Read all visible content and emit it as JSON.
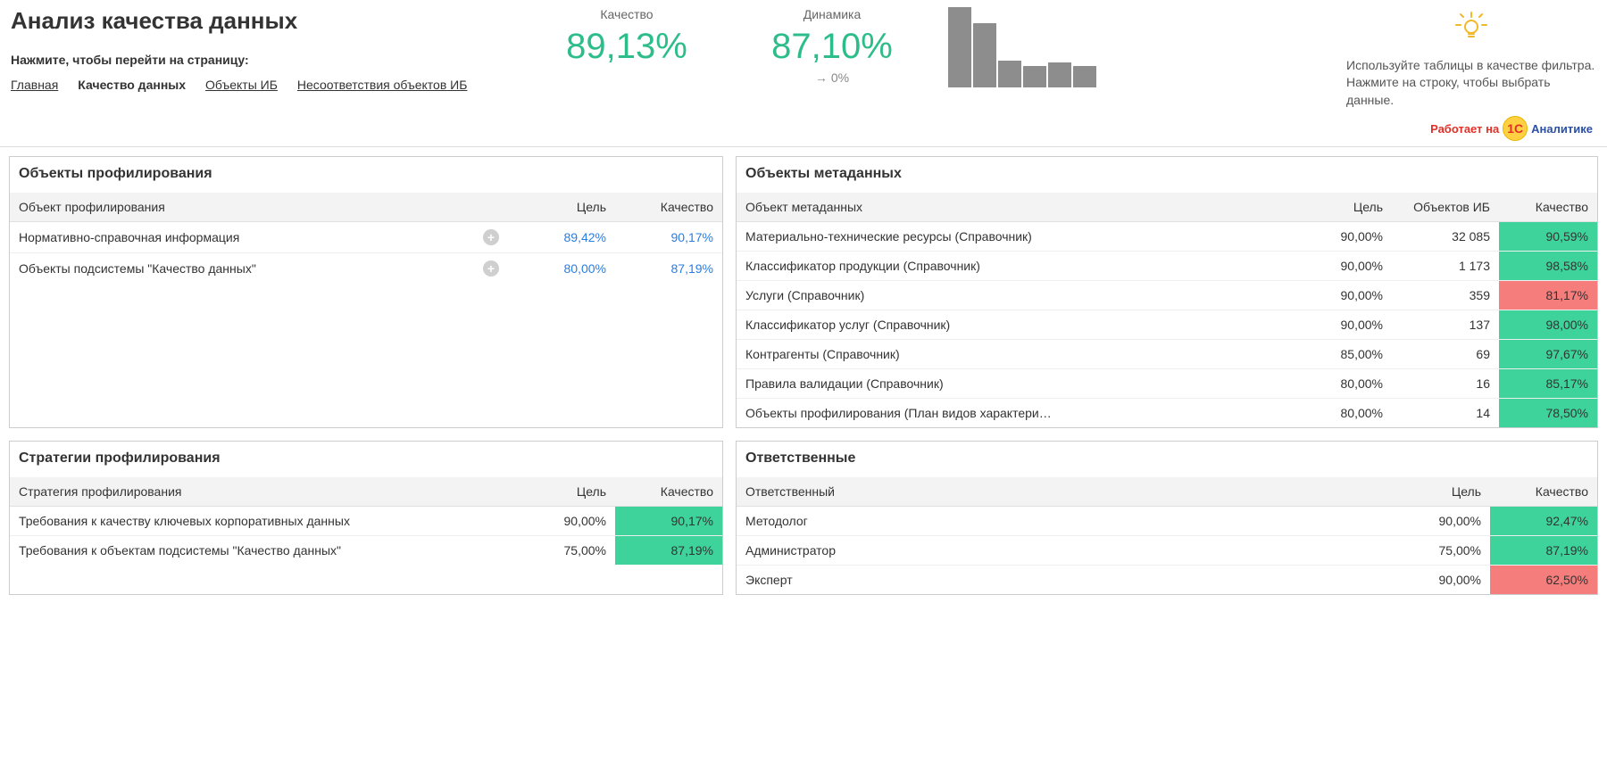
{
  "header": {
    "title": "Анализ качества данных",
    "navHint": "Нажмите, чтобы перейти на страницу:",
    "navLinks": [
      {
        "label": "Главная",
        "active": false
      },
      {
        "label": "Качество данных",
        "active": true
      },
      {
        "label": "Объекты ИБ",
        "active": false
      },
      {
        "label": "Несоответствия объектов ИБ",
        "active": false
      }
    ],
    "kpi1": {
      "label": "Качество",
      "value": "89,13%"
    },
    "kpi2": {
      "label": "Динамика",
      "value": "87,10%",
      "delta": "0%"
    },
    "bars": {
      "heights": [
        90,
        72,
        30,
        24,
        28,
        24
      ],
      "color": "#8d8d8d",
      "width": 26,
      "gap": 2,
      "chartHeight": 90
    },
    "tip": "Используйте таблицы в качестве фильтра. Нажмите на строку, чтобы выбрать данные.",
    "bulbColor": "#f1b92a"
  },
  "logo": {
    "prefix": "Работает на",
    "badge": "1С",
    "suffix": "Аналитике"
  },
  "colors": {
    "good": "#3fd39c",
    "bad": "#f57d7c",
    "link": "#2a7de1"
  },
  "panelProfiling": {
    "title": "Объекты профилирования",
    "columns": [
      "Объект профилирования",
      "",
      "Цель",
      "Качество"
    ],
    "rows": [
      {
        "name": "Нормативно-справочная информация",
        "goal": "89,42%",
        "quality": "90,17%"
      },
      {
        "name": "Объекты подсистемы \"Качество данных\"",
        "goal": "80,00%",
        "quality": "87,19%"
      }
    ]
  },
  "panelMetadata": {
    "title": "Объекты метаданных",
    "columns": [
      "Объект метаданных",
      "Цель",
      "Объектов ИБ",
      "Качество"
    ],
    "rows": [
      {
        "name": "Материально-технические ресурсы (Справочник)",
        "goal": "90,00%",
        "count": "32 085",
        "quality": "90,59%",
        "qcolor": "good"
      },
      {
        "name": "Классификатор продукции (Справочник)",
        "goal": "90,00%",
        "count": "1 173",
        "quality": "98,58%",
        "qcolor": "good"
      },
      {
        "name": "Услуги (Справочник)",
        "goal": "90,00%",
        "count": "359",
        "quality": "81,17%",
        "qcolor": "bad"
      },
      {
        "name": "Классификатор услуг (Справочник)",
        "goal": "90,00%",
        "count": "137",
        "quality": "98,00%",
        "qcolor": "good"
      },
      {
        "name": "Контрагенты (Справочник)",
        "goal": "85,00%",
        "count": "69",
        "quality": "97,67%",
        "qcolor": "good"
      },
      {
        "name": "Правила валидации (Справочник)",
        "goal": "80,00%",
        "count": "16",
        "quality": "85,17%",
        "qcolor": "good"
      },
      {
        "name": "Объекты профилирования (План видов характери…",
        "goal": "80,00%",
        "count": "14",
        "quality": "78,50%",
        "qcolor": "good"
      }
    ]
  },
  "panelStrategies": {
    "title": "Стратегии профилирования",
    "columns": [
      "Стратегия профилирования",
      "Цель",
      "Качество"
    ],
    "rows": [
      {
        "name": "Требования к качеству ключевых корпоративных данных",
        "goal": "90,00%",
        "quality": "90,17%",
        "qcolor": "good"
      },
      {
        "name": "Требования к объектам подсистемы \"Качество данных\"",
        "goal": "75,00%",
        "quality": "87,19%",
        "qcolor": "good"
      }
    ]
  },
  "panelResponsible": {
    "title": "Ответственные",
    "columns": [
      "Ответственный",
      "Цель",
      "Качество"
    ],
    "rows": [
      {
        "name": "Методолог",
        "goal": "90,00%",
        "quality": "92,47%",
        "qcolor": "good"
      },
      {
        "name": "Администратор",
        "goal": "75,00%",
        "quality": "87,19%",
        "qcolor": "good"
      },
      {
        "name": "Эксперт",
        "goal": "90,00%",
        "quality": "62,50%",
        "qcolor": "bad"
      }
    ]
  }
}
